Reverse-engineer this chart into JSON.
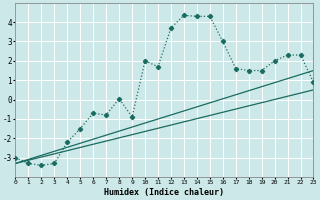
{
  "xlabel": "Humidex (Indice chaleur)",
  "bg_color": "#cce8e8",
  "grid_color": "#ffffff",
  "line_color": "#1a6b60",
  "x_min": 0,
  "x_max": 23,
  "y_min": -4,
  "y_max": 5,
  "main_line_x": [
    0,
    1,
    2,
    3,
    4,
    5,
    6,
    7,
    8,
    9,
    10,
    11,
    12,
    13,
    14,
    15,
    16,
    17,
    18,
    19,
    20,
    21,
    22,
    23
  ],
  "main_line_y": [
    -3.0,
    -3.3,
    -3.4,
    -3.3,
    -2.2,
    -1.5,
    -0.7,
    -0.8,
    0.05,
    -0.9,
    2.0,
    1.7,
    3.7,
    4.35,
    4.3,
    4.3,
    3.0,
    1.6,
    1.5,
    1.5,
    2.0,
    2.3,
    2.3,
    0.9
  ],
  "line2_x": [
    0,
    23
  ],
  "line2_y": [
    -3.3,
    1.5
  ],
  "line3_x": [
    0,
    23
  ],
  "line3_y": [
    -3.3,
    0.5
  ]
}
